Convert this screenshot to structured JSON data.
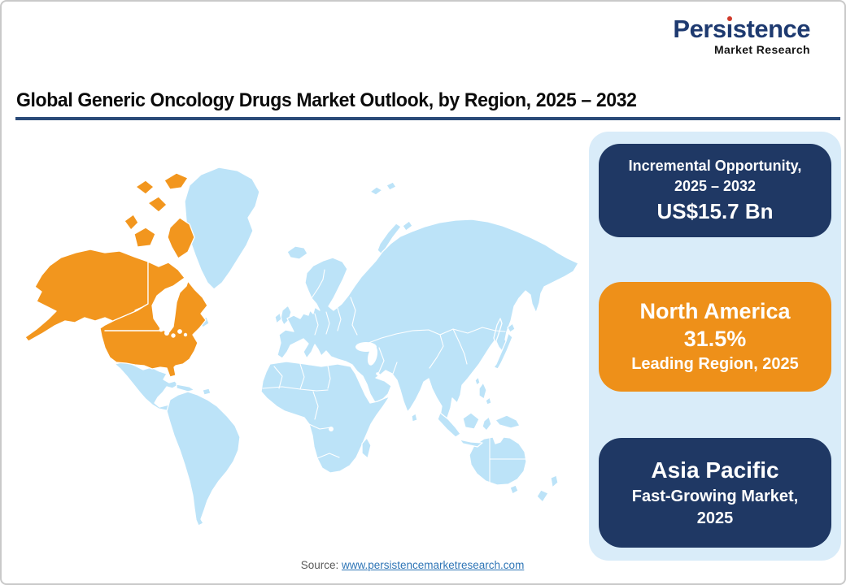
{
  "logo": {
    "title": "Persistence",
    "subtitle": "Market Research"
  },
  "header": {
    "title": "Global Generic Oncology Drugs Market Outlook, by Region, 2025 – 2032"
  },
  "map": {
    "highlighted_region": "North America",
    "highlight_color": "#f2961e",
    "base_color": "#bce3f8"
  },
  "sidebar": {
    "cards": [
      {
        "title": "Incremental Opportunity, 2025 – 2032",
        "value": "US$15.7 Bn"
      },
      {
        "title": "North America",
        "value": "31.5%",
        "subtitle": "Leading Region, 2025"
      },
      {
        "title": "Asia Pacific",
        "subtitle": "Fast-Growing Market, 2025"
      }
    ]
  },
  "footer": {
    "source_label": "Source:",
    "source_link": "www.persistencemarketresearch.com"
  },
  "colors": {
    "navy": "#1f3864",
    "card_orange": "#ee9019",
    "map_orange": "#f2961e",
    "map_blue": "#bce3f8",
    "panel_blue": "#d9ecf9",
    "logo_blue": "#1e3a70",
    "logo_dot": "#d03a2b",
    "rule_navy": "#2a4a78",
    "link_blue": "#2e75b6",
    "source_gray": "#595959",
    "title_black": "#0b0b0b",
    "page_border": "#c9c9c9"
  }
}
